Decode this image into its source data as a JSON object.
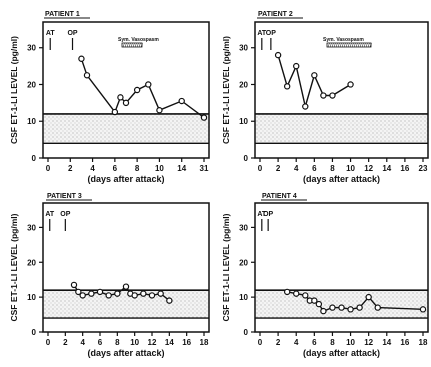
{
  "chart_data": [
    {
      "type": "line",
      "title": "PATIENT 1",
      "ylabel": "CSF ET-1-LI LEVEL (pg/ml)",
      "xlabel": "(days after attack)",
      "x_ticks": [
        "0",
        "2",
        "4",
        "6",
        "8",
        "10",
        "14",
        "31"
      ],
      "y_ticks": [
        0,
        10,
        20,
        30
      ],
      "ylim": [
        0,
        37
      ],
      "normal_range": [
        4,
        12
      ],
      "markers": [
        {
          "label": "AT",
          "x": 0.2
        },
        {
          "label": "OP",
          "x": 2.2
        }
      ],
      "annotation": {
        "label": "Sym. Vasospasm",
        "x_from": 8,
        "x_to": 10
      },
      "series": [
        {
          "x": [
            3,
            3.5,
            6,
            6.5,
            7,
            8,
            9,
            10,
            14,
            31
          ],
          "values": [
            27,
            22.5,
            12.5,
            16.5,
            15,
            18.5,
            20,
            13,
            15.5,
            11
          ]
        }
      ]
    },
    {
      "type": "line",
      "title": "PATIENT 2",
      "ylabel": "CSF ET-1-LI LEVEL (pg/ml)",
      "xlabel": "(days after attack)",
      "x_ticks": [
        "0",
        "2",
        "4",
        "6",
        "8",
        "10",
        "12",
        "14",
        "16",
        "23"
      ],
      "y_ticks": [
        0,
        10,
        20,
        30
      ],
      "ylim": [
        0,
        37
      ],
      "normal_range": [
        4,
        12
      ],
      "markers": [
        {
          "label": "AT",
          "x": 0.2
        },
        {
          "label": "OP",
          "x": 1.2
        }
      ],
      "annotation": {
        "label": "Sym. Vasospasm",
        "x_from": 6,
        "x_to": 12
      },
      "series": [
        {
          "x": [
            2,
            3,
            4,
            5,
            6,
            7,
            8,
            10
          ],
          "values": [
            28,
            19.5,
            25,
            14,
            22.5,
            17,
            17,
            20
          ]
        }
      ]
    },
    {
      "type": "line",
      "title": "PATIENT 3",
      "ylabel": "CSF ET-1-LI LEVEL (pg/ml)",
      "xlabel": "(days after attack)",
      "x_ticks": [
        "0",
        "2",
        "4",
        "6",
        "8",
        "10",
        "12",
        "14",
        "16",
        "18"
      ],
      "y_ticks": [
        0,
        10,
        20,
        30
      ],
      "ylim": [
        0,
        37
      ],
      "normal_range": [
        4,
        12
      ],
      "markers": [
        {
          "label": "AT",
          "x": 0.2
        },
        {
          "label": "OP",
          "x": 2
        }
      ],
      "series": [
        {
          "x": [
            3,
            3.5,
            4,
            5,
            6,
            7,
            8,
            9,
            9.5,
            10,
            11,
            12,
            13,
            14
          ],
          "values": [
            13.5,
            11.5,
            10.5,
            11,
            11.5,
            10.5,
            11,
            13,
            11,
            10.5,
            11,
            10.5,
            11,
            9
          ]
        }
      ]
    },
    {
      "type": "line",
      "title": "PATIENT 4",
      "ylabel": "CSF ET-1-LI LEVEL (pg/ml)",
      "xlabel": "(days after attack)",
      "x_ticks": [
        "0",
        "2",
        "4",
        "6",
        "8",
        "10",
        "12",
        "14",
        "16",
        "18"
      ],
      "y_ticks": [
        0,
        10,
        20,
        30
      ],
      "ylim": [
        0,
        37
      ],
      "normal_range": [
        4,
        12
      ],
      "markers": [
        {
          "label": "AT",
          "x": 0.2
        },
        {
          "label": "OP",
          "x": 0.9
        }
      ],
      "series": [
        {
          "x": [
            3,
            4,
            5,
            5.5,
            6,
            6.5,
            7,
            8,
            9,
            10,
            11,
            12,
            13,
            18
          ],
          "values": [
            11.5,
            11,
            10.5,
            9,
            9,
            8,
            6,
            7,
            7,
            6.5,
            7,
            10,
            7,
            6.5
          ]
        }
      ]
    }
  ]
}
